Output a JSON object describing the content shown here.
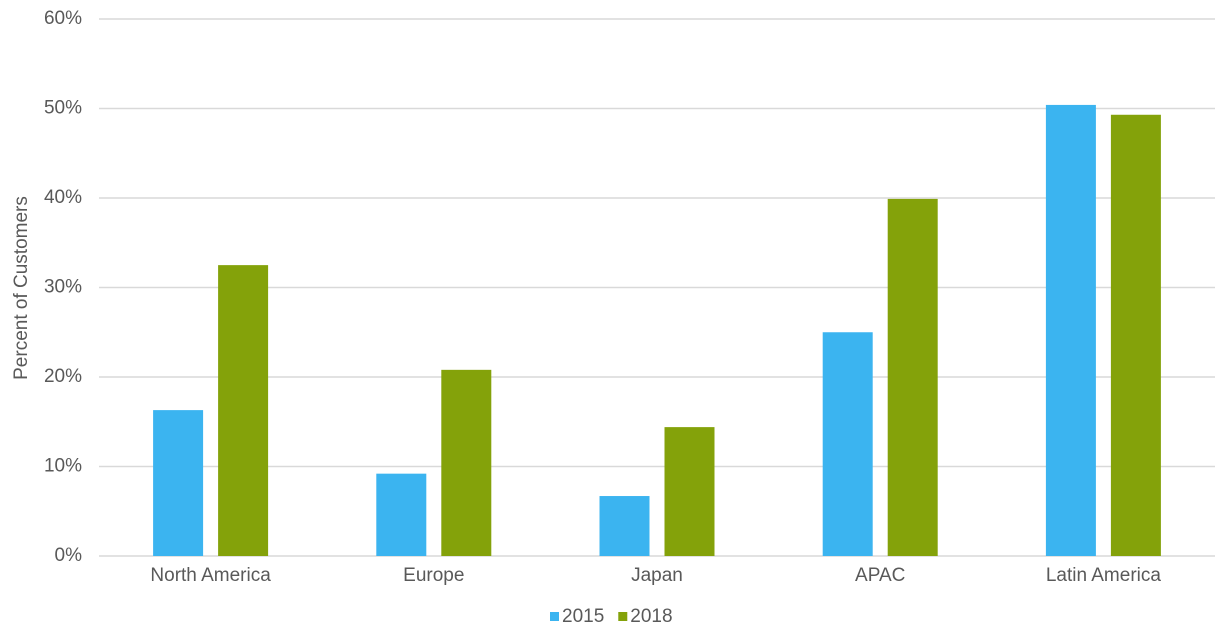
{
  "chart_data": {
    "type": "bar",
    "y_label": "Percent of Customers",
    "categories": [
      "North America",
      "Europe",
      "Japan",
      "APAC",
      "Latin America"
    ],
    "series": [
      {
        "name": "2015",
        "color": "#3bb4f0",
        "values": [
          16.3,
          9.2,
          6.7,
          25.0,
          50.4
        ]
      },
      {
        "name": "2018",
        "color": "#84a20a",
        "values": [
          32.5,
          20.8,
          14.4,
          39.9,
          49.3
        ]
      }
    ],
    "ylim": [
      0,
      60
    ],
    "yticks": [
      {
        "value": 0,
        "label": "0%"
      },
      {
        "value": 10,
        "label": "10%"
      },
      {
        "value": 20,
        "label": "20%"
      },
      {
        "value": 30,
        "label": "30%"
      },
      {
        "value": 40,
        "label": "40%"
      },
      {
        "value": 50,
        "label": "50%"
      },
      {
        "value": 60,
        "label": "60%"
      }
    ],
    "grid": true,
    "legend": "bottom"
  }
}
